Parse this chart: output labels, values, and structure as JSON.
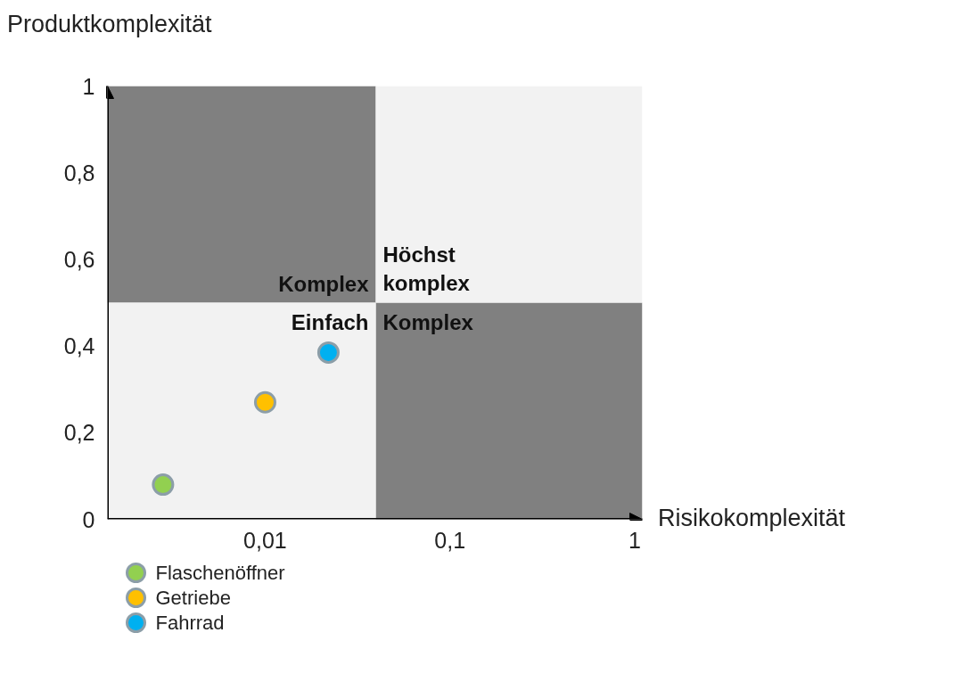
{
  "chart_data": {
    "type": "scatter",
    "xlabel": "Risikokomplexität",
    "ylabel": "Produktkomplexität",
    "log": "x",
    "xlim": [
      0.0014,
      1.1
    ],
    "ylim": [
      0,
      1
    ],
    "xticks": [
      {
        "value": 0.01,
        "label": "0,01"
      },
      {
        "value": 0.1,
        "label": "0,1"
      },
      {
        "value": 1,
        "label": "1"
      }
    ],
    "yticks": [
      0,
      {
        "value": 0.2,
        "label": "0,2"
      },
      {
        "value": 0.4,
        "label": "0,4"
      },
      {
        "value": 0.6,
        "label": "0,6"
      },
      {
        "value": 0.8,
        "label": "0,8"
      },
      1
    ],
    "grid": false,
    "legend": "bottom",
    "marker": "circle",
    "annotations": [
      "Komplex",
      "Höchst\nkomplex",
      "Einfach",
      "Komplex"
    ],
    "series": [
      {
        "type": "bar",
        "color": "#808080",
        "x": [
          0.0075,
          0.21
        ],
        "base": [
          0.5,
          0
        ],
        "values": [
          0.5,
          0.5
        ]
      },
      {
        "type": "bar",
        "color": "#f2f2f2",
        "x": [
          0.0075,
          0.21
        ],
        "base": [
          0,
          0.5
        ],
        "values": [
          0.5,
          0.5
        ]
      },
      {
        "name": "Flaschenöffner",
        "color": "#92d050",
        "x": [
          0.0028
        ],
        "values": [
          0.08
        ]
      },
      {
        "name": "Getriebe",
        "color": "#ffc000",
        "x": [
          0.01
        ],
        "values": [
          0.27
        ]
      },
      {
        "name": "Fahrrad",
        "color": "#00b0f0",
        "x": [
          0.022
        ],
        "values": [
          0.385
        ]
      }
    ]
  }
}
